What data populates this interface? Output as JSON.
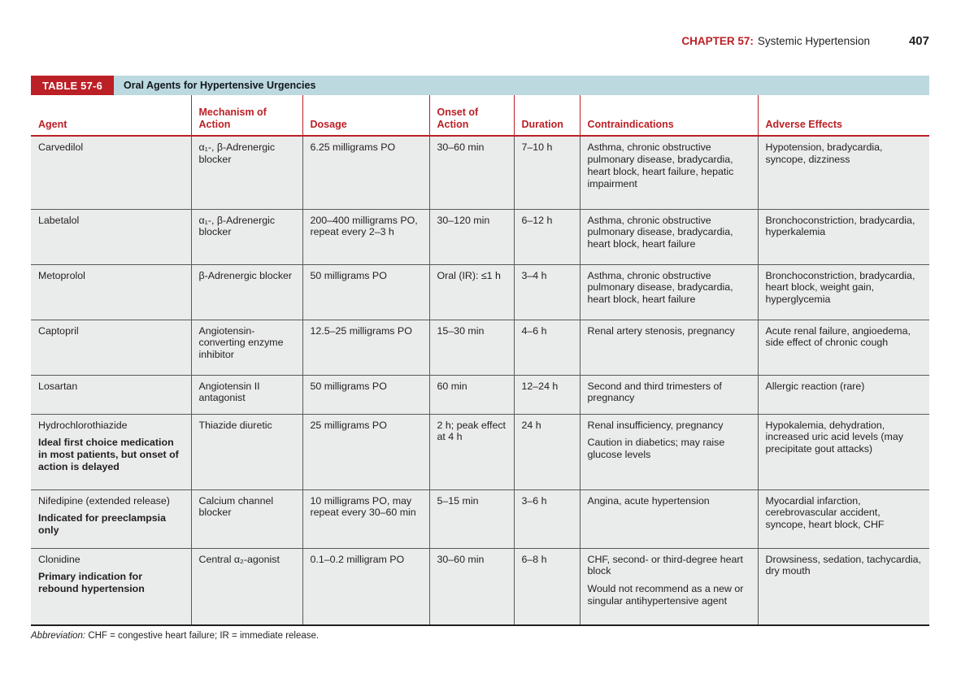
{
  "page": {
    "chapter_label": "CHAPTER 57:",
    "chapter_title": "Systemic Hypertension",
    "page_number": "407"
  },
  "table": {
    "badge": "TABLE 57-6",
    "title": "Oral Agents for Hypertensive Urgencies",
    "columns": [
      "Agent",
      "Mechanism of Action",
      "Dosage",
      "Onset of Action",
      "Duration",
      "Contraindications",
      "Adverse Effects"
    ],
    "rows": [
      {
        "agent": "Carvedilol",
        "agent_note": "",
        "mechanism": "α₁-, β-Adrenergic blocker",
        "dosage": "6.25 milligrams PO",
        "onset": "30–60 min",
        "duration": "7–10 h",
        "contraindications": [
          "Asthma, chronic obstructive pulmonary disease, bradycardia, heart block, heart failure, hepatic impairment"
        ],
        "adverse_effects": "Hypotension, bradycardia, syncope, dizziness"
      },
      {
        "agent": "Labetalol",
        "agent_note": "",
        "mechanism": "α₁-, β-Adrenergic blocker",
        "dosage": "200–400 milligrams PO, repeat every 2–3 h",
        "onset": "30–120 min",
        "duration": "6–12 h",
        "contraindications": [
          "Asthma, chronic obstructive pulmonary disease, bradycardia, heart block, heart failure"
        ],
        "adverse_effects": "Bronchoconstriction, bradycardia, hyperkalemia"
      },
      {
        "agent": "Metoprolol",
        "agent_note": "",
        "mechanism": "β-Adrenergic blocker",
        "dosage": "50 milligrams PO",
        "onset": "Oral (IR): ≤1 h",
        "duration": "3–4 h",
        "contraindications": [
          "Asthma, chronic obstructive pulmonary disease, bradycardia, heart block, heart failure"
        ],
        "adverse_effects": "Bronchoconstriction, bradycardia, heart block, weight gain, hyperglycemia"
      },
      {
        "agent": "Captopril",
        "agent_note": "",
        "mechanism": "Angiotensin-converting enzyme inhibitor",
        "dosage": "12.5–25 milligrams PO",
        "onset": "15–30 min",
        "duration": "4–6 h",
        "contraindications": [
          "Renal artery stenosis, pregnancy"
        ],
        "adverse_effects": "Acute renal failure, angioedema, side effect of chronic cough"
      },
      {
        "agent": "Losartan",
        "agent_note": "",
        "mechanism": "Angiotensin II antagonist",
        "dosage": "50 milligrams PO",
        "onset": "60 min",
        "duration": "12–24 h",
        "contraindications": [
          "Second and third trimesters of pregnancy"
        ],
        "adverse_effects": "Allergic reaction (rare)"
      },
      {
        "agent": "Hydrochlorothiazide",
        "agent_note": "Ideal first choice medication in most patients, but onset of action is delayed",
        "mechanism": "Thiazide diuretic",
        "dosage": "25 milligrams PO",
        "onset": "2 h; peak effect at 4 h",
        "duration": "24 h",
        "contraindications": [
          "Renal insufficiency, pregnancy",
          "Caution in diabetics; may raise glucose levels"
        ],
        "adverse_effects": "Hypokalemia, dehydration, increased uric acid levels (may precipitate gout attacks)"
      },
      {
        "agent": "Nifedipine (extended release)",
        "agent_note": "Indicated for preeclampsia only",
        "mechanism": "Calcium channel blocker",
        "dosage": "10 milligrams PO, may repeat every 30–60 min",
        "onset": "5–15 min",
        "duration": "3–6 h",
        "contraindications": [
          "Angina, acute hypertension"
        ],
        "adverse_effects": "Myocardial infarction, cerebrovascular accident, syncope, heart block, CHF"
      },
      {
        "agent": "Clonidine",
        "agent_note": "Primary indication for rebound hypertension",
        "mechanism": "Central α₂-agonist",
        "dosage": "0.1–0.2 milligram PO",
        "onset": "30–60 min",
        "duration": "6–8 h",
        "contraindications": [
          "CHF, second- or third-degree heart block",
          "Would not recommend as a new or singular antihypertensive agent"
        ],
        "adverse_effects": "Drowsiness, sedation, tachycardia, dry mouth"
      }
    ],
    "footnote_label": "Abbreviation:",
    "footnote_text": " CHF = congestive heart failure; IR = immediate release."
  },
  "colors": {
    "accent_red": "#bb2026",
    "title_bar_blue": "#bdd9e0",
    "row_background": "#eaebeb"
  }
}
